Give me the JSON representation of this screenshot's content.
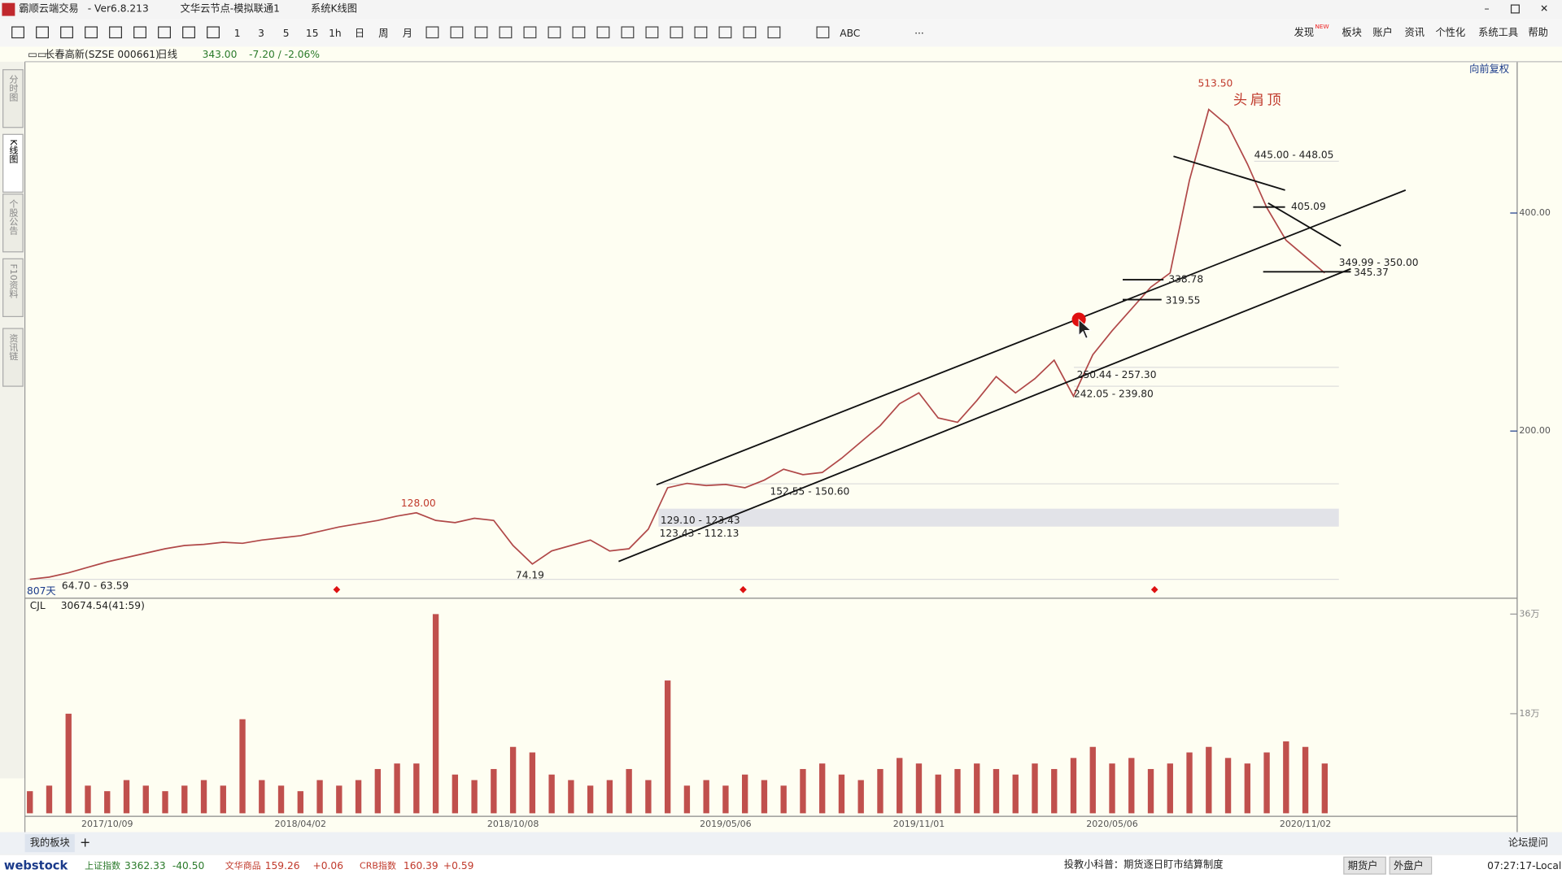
{
  "window": {
    "app_title": "霸顺云端交易",
    "version": "- Ver6.8.213",
    "server": "文华云节点-模拟联通1",
    "mode": "系统K线图"
  },
  "toolbar": {
    "buttons": [
      "1",
      "3",
      "5",
      "15",
      "1h",
      "日",
      "周",
      "月",
      "ABC",
      "···"
    ],
    "menu": [
      "发现",
      "板块",
      "账户",
      "资讯",
      "个性化",
      "系统工具",
      "帮助"
    ],
    "badge": "NEW"
  },
  "side_tabs": [
    "分时图",
    "K线图",
    "个股公告",
    "F10资料",
    "资讯链"
  ],
  "chart_header": {
    "stock": "长春高新(SZSE 000661)",
    "period": "日线",
    "price": "343.00",
    "change": "-7.20 / -2.06%",
    "adjust": "向前复权"
  },
  "chart_data": [
    {
      "type": "line",
      "color": "#b04848",
      "categories": [
        null,
        null,
        null,
        null,
        "2017/10/09",
        null,
        null,
        null,
        null,
        null,
        null,
        null,
        null,
        null,
        "2018/04/02",
        null,
        null,
        null,
        null,
        null,
        null,
        null,
        null,
        null,
        null,
        "2018/10/08",
        null,
        null,
        null,
        null,
        null,
        null,
        null,
        null,
        null,
        null,
        "2019/05/06",
        null,
        null,
        null,
        null,
        null,
        null,
        null,
        null,
        null,
        "2019/11/01",
        null,
        null,
        null,
        null,
        null,
        null,
        null,
        null,
        null,
        "2020/05/06",
        null,
        null,
        null,
        null,
        null,
        null,
        null,
        null,
        null,
        "2020/11/02",
        null
      ],
      "values": [
        64,
        66,
        70,
        75,
        80,
        84,
        88,
        92,
        95,
        96,
        98,
        97,
        100,
        102,
        104,
        108,
        112,
        115,
        118,
        122,
        125,
        118,
        116,
        120,
        118,
        95,
        78,
        90,
        95,
        100,
        90,
        92,
        110,
        148,
        152,
        150,
        151,
        148,
        155,
        165,
        160,
        162,
        175,
        190,
        205,
        225,
        235,
        212,
        208,
        228,
        250,
        235,
        248,
        265,
        232,
        270,
        292,
        312,
        332,
        345,
        430,
        495,
        480,
        445,
        405,
        375,
        360,
        345
      ],
      "ylim": [
        47.5,
        538.8
      ],
      "yticks": [
        {
          "value": 200,
          "label": "200.00"
        },
        {
          "value": 400,
          "label": "400.00"
        }
      ]
    },
    {
      "type": "bar",
      "color": "#c0504d",
      "indicator": "CJL",
      "value_text": "30674.54(41:59)",
      "values": [
        4,
        5,
        18,
        5,
        4,
        6,
        5,
        4,
        5,
        6,
        5,
        17,
        6,
        5,
        4,
        6,
        5,
        6,
        8,
        9,
        9,
        36,
        7,
        6,
        8,
        12,
        11,
        7,
        6,
        5,
        6,
        8,
        6,
        24,
        5,
        6,
        5,
        7,
        6,
        5,
        8,
        9,
        7,
        6,
        8,
        10,
        9,
        7,
        8,
        9,
        8,
        7,
        9,
        8,
        10,
        12,
        9,
        10,
        8,
        9,
        11,
        12,
        10,
        9,
        11,
        13,
        12,
        9
      ],
      "ylim": [
        0,
        38.5
      ],
      "yticks": [
        {
          "value": 18,
          "label": "18万"
        },
        {
          "value": 36,
          "label": "36万"
        }
      ]
    }
  ],
  "annotations": [
    {
      "text": "513.50",
      "kind": "high"
    },
    {
      "text": "头肩顶",
      "kind": "note"
    },
    {
      "text": "445.00 - 448.05"
    },
    {
      "text": "405.09"
    },
    {
      "text": "349.99 - 350.00"
    },
    {
      "text": "345.37"
    },
    {
      "text": "338.78"
    },
    {
      "text": "319.55"
    },
    {
      "text": "250.44 - 257.30"
    },
    {
      "text": "242.05 - 239.80"
    },
    {
      "text": "152.55 - 150.60"
    },
    {
      "text": "129.10 - 123.43"
    },
    {
      "text": "123.43 - 112.13"
    },
    {
      "text": "128.00",
      "kind": "high"
    },
    {
      "text": "74.19"
    },
    {
      "text": "64.70 - 63.59"
    },
    {
      "text": "807天",
      "kind": "days"
    }
  ],
  "bottom_tabs": {
    "tab": "我的板块",
    "add": "+",
    "forum": "论坛提问"
  },
  "status": {
    "logo": "webstock",
    "indices": [
      {
        "name": "上证指数",
        "value": "3362.33",
        "change": "-40.50"
      },
      {
        "name": "文华商品",
        "value": "159.26",
        "change": "+0.06"
      },
      {
        "name": "CRB指数",
        "value": "160.39",
        "change": "+0.59"
      }
    ],
    "tip": "投教小科普：期货逐日盯市结算制度",
    "buttons": [
      "期货户",
      "外盘户"
    ],
    "time": "07:27:17-Local"
  }
}
